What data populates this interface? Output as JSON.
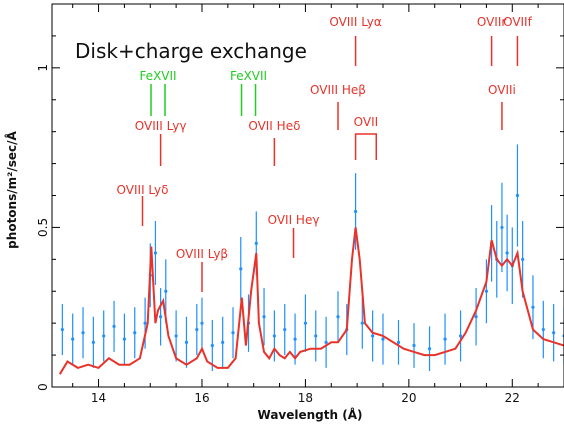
{
  "chart_data": {
    "type": "line",
    "title": "Disk+charge exchange",
    "xlabel": "Wavelength (Å)",
    "ylabel": "photons/m²/sec/Å",
    "xlim": [
      13.1,
      23.0
    ],
    "ylim": [
      0,
      1.2
    ],
    "xticks": [
      14,
      16,
      18,
      20,
      22
    ],
    "yticks": [
      0,
      0.5,
      1
    ],
    "series": [
      {
        "name": "",
        "role": "data",
        "color": "#1e90ff",
        "x": [
          13.3,
          13.5,
          13.7,
          13.9,
          14.1,
          14.3,
          14.5,
          14.7,
          14.9,
          15.0,
          15.1,
          15.2,
          15.3,
          15.5,
          15.7,
          15.9,
          16.0,
          16.2,
          16.4,
          16.6,
          16.75,
          16.9,
          17.05,
          17.2,
          17.4,
          17.6,
          17.8,
          18.0,
          18.2,
          18.4,
          18.63,
          18.8,
          18.97,
          19.1,
          19.3,
          19.5,
          19.8,
          20.1,
          20.4,
          20.7,
          21.0,
          21.3,
          21.5,
          21.6,
          21.7,
          21.8,
          21.9,
          22.0,
          22.1,
          22.2,
          22.4,
          22.6,
          22.8,
          23.0
        ],
        "y": [
          0.18,
          0.15,
          0.17,
          0.14,
          0.16,
          0.19,
          0.15,
          0.17,
          0.2,
          0.35,
          0.42,
          0.22,
          0.3,
          0.16,
          0.14,
          0.18,
          0.2,
          0.13,
          0.14,
          0.17,
          0.37,
          0.2,
          0.45,
          0.22,
          0.16,
          0.18,
          0.15,
          0.2,
          0.16,
          0.14,
          0.22,
          0.18,
          0.55,
          0.2,
          0.16,
          0.15,
          0.14,
          0.13,
          0.12,
          0.15,
          0.16,
          0.22,
          0.3,
          0.45,
          0.4,
          0.5,
          0.42,
          0.38,
          0.6,
          0.4,
          0.25,
          0.18,
          0.17,
          0.16
        ],
        "error": [
          0.08,
          0.08,
          0.08,
          0.08,
          0.08,
          0.08,
          0.08,
          0.08,
          0.08,
          0.1,
          0.1,
          0.09,
          0.1,
          0.08,
          0.08,
          0.08,
          0.08,
          0.08,
          0.08,
          0.08,
          0.1,
          0.09,
          0.1,
          0.09,
          0.08,
          0.08,
          0.08,
          0.09,
          0.08,
          0.08,
          0.08,
          0.08,
          0.12,
          0.08,
          0.08,
          0.08,
          0.07,
          0.07,
          0.07,
          0.08,
          0.08,
          0.09,
          0.1,
          0.12,
          0.12,
          0.14,
          0.12,
          0.12,
          0.16,
          0.12,
          0.1,
          0.09,
          0.09,
          0.09
        ]
      },
      {
        "name": "",
        "role": "model",
        "color": "#e8332a",
        "x": [
          13.25,
          13.4,
          13.6,
          13.8,
          14.0,
          14.2,
          14.4,
          14.6,
          14.8,
          14.95,
          15.02,
          15.1,
          15.15,
          15.25,
          15.35,
          15.5,
          15.7,
          15.9,
          16.0,
          16.1,
          16.3,
          16.5,
          16.65,
          16.77,
          16.85,
          16.95,
          17.05,
          17.1,
          17.2,
          17.3,
          17.4,
          17.5,
          17.6,
          17.7,
          17.8,
          17.9,
          18.1,
          18.3,
          18.5,
          18.63,
          18.8,
          18.9,
          18.97,
          19.05,
          19.15,
          19.3,
          19.5,
          19.7,
          19.9,
          20.1,
          20.3,
          20.5,
          20.7,
          20.9,
          21.1,
          21.3,
          21.5,
          21.6,
          21.7,
          21.8,
          21.9,
          22.0,
          22.1,
          22.2,
          22.4,
          22.6,
          22.8,
          23.0
        ],
        "y": [
          0.04,
          0.08,
          0.06,
          0.07,
          0.06,
          0.09,
          0.07,
          0.07,
          0.09,
          0.2,
          0.44,
          0.2,
          0.24,
          0.27,
          0.16,
          0.09,
          0.07,
          0.09,
          0.12,
          0.08,
          0.06,
          0.06,
          0.09,
          0.28,
          0.13,
          0.3,
          0.42,
          0.2,
          0.11,
          0.09,
          0.12,
          0.1,
          0.09,
          0.11,
          0.09,
          0.11,
          0.12,
          0.12,
          0.14,
          0.14,
          0.18,
          0.4,
          0.5,
          0.4,
          0.2,
          0.17,
          0.16,
          0.14,
          0.12,
          0.11,
          0.1,
          0.1,
          0.11,
          0.12,
          0.17,
          0.24,
          0.33,
          0.46,
          0.4,
          0.38,
          0.4,
          0.38,
          0.42,
          0.3,
          0.18,
          0.15,
          0.14,
          0.13
        ]
      }
    ],
    "annotations": [
      {
        "text": "OVIII Lyα",
        "x": 18.97,
        "color": "#e8332a"
      },
      {
        "text": "OVIII Heβ",
        "x": 18.63,
        "color": "#e8332a"
      },
      {
        "text": "OVII",
        "x": 19.1,
        "color": "#e8332a"
      },
      {
        "text": "OVII Heδ",
        "x": 17.4,
        "color": "#e8332a"
      },
      {
        "text": "OVIII Lyγ",
        "x": 15.2,
        "color": "#e8332a"
      },
      {
        "text": "OVIII Lyδ",
        "x": 14.85,
        "color": "#e8332a"
      },
      {
        "text": "OVIII Lyβ",
        "x": 16.0,
        "color": "#e8332a"
      },
      {
        "text": "OVII Heγ",
        "x": 17.77,
        "color": "#e8332a"
      },
      {
        "text": "OVIIr",
        "x": 21.6,
        "color": "#e8332a"
      },
      {
        "text": "OVIIf",
        "x": 22.1,
        "color": "#e8332a"
      },
      {
        "text": "OVIIi",
        "x": 21.8,
        "color": "#e8332a"
      },
      {
        "text": "FeXVII",
        "x": 15.15,
        "color": "#22cc22"
      },
      {
        "text": "FeXVII",
        "x": 16.9,
        "color": "#22cc22"
      }
    ],
    "grid": false
  }
}
